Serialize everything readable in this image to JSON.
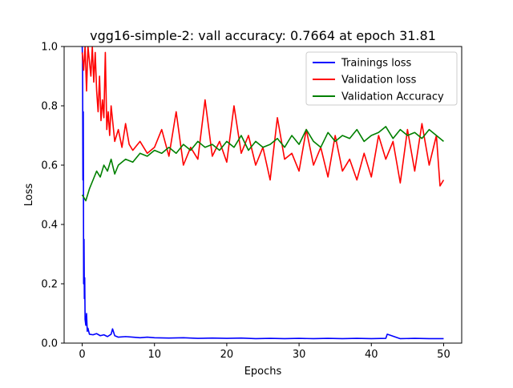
{
  "chart_data": {
    "type": "line",
    "title": "vgg16-simple-2: vall accuracy: 0.7664 at epoch 31.81",
    "xlabel": "Epochs",
    "ylabel": "Loss",
    "xlim": [
      -2.5,
      52.5
    ],
    "ylim": [
      0.0,
      1.0
    ],
    "xticks": [
      0,
      10,
      20,
      30,
      40,
      50
    ],
    "xtick_labels": [
      "0",
      "10",
      "20",
      "30",
      "40",
      "50"
    ],
    "yticks": [
      0.0,
      0.2,
      0.4,
      0.6,
      0.8,
      1.0
    ],
    "ytick_labels": [
      "0.0",
      "0.2",
      "0.4",
      "0.6",
      "0.8",
      "1.0"
    ],
    "grid": false,
    "legend_position": "upper right",
    "series": [
      {
        "name": "Trainings loss",
        "color": "#0000ff",
        "x": [
          0,
          0.05,
          0.1,
          0.15,
          0.2,
          0.25,
          0.3,
          0.35,
          0.4,
          0.5,
          0.6,
          0.7,
          0.8,
          1.0,
          1.5,
          2.0,
          2.5,
          3.0,
          3.5,
          4.0,
          4.2,
          4.5,
          5,
          6,
          7,
          8,
          9,
          10,
          12,
          14,
          16,
          18,
          20,
          22,
          24,
          26,
          28,
          30,
          32,
          34,
          36,
          38,
          40,
          42,
          42.2,
          44,
          46,
          48,
          50
        ],
        "y": [
          1.0,
          0.95,
          0.55,
          0.78,
          0.2,
          0.35,
          0.15,
          0.22,
          0.08,
          0.06,
          0.1,
          0.04,
          0.05,
          0.03,
          0.028,
          0.032,
          0.025,
          0.028,
          0.022,
          0.03,
          0.048,
          0.025,
          0.02,
          0.022,
          0.02,
          0.018,
          0.02,
          0.018,
          0.017,
          0.018,
          0.016,
          0.017,
          0.016,
          0.017,
          0.015,
          0.016,
          0.015,
          0.016,
          0.015,
          0.016,
          0.015,
          0.016,
          0.015,
          0.016,
          0.03,
          0.015,
          0.016,
          0.015,
          0.015
        ]
      },
      {
        "name": "Validation loss",
        "color": "#ff0000",
        "x": [
          0,
          0.2,
          0.4,
          0.6,
          0.8,
          1.0,
          1.2,
          1.4,
          1.6,
          1.8,
          2.0,
          2.2,
          2.4,
          2.6,
          2.8,
          3.0,
          3.2,
          3.4,
          3.6,
          3.8,
          4.0,
          4.5,
          5.0,
          5.5,
          6.0,
          6.5,
          7,
          8,
          9,
          10,
          11,
          12,
          13,
          14,
          15,
          16,
          17,
          18,
          19,
          20,
          21,
          22,
          23,
          24,
          25,
          26,
          27,
          28,
          29,
          30,
          31,
          32,
          33,
          34,
          35,
          36,
          37,
          38,
          39,
          40,
          41,
          42,
          43,
          44,
          45,
          46,
          47,
          48,
          49,
          49.5,
          50
        ],
        "y": [
          0.98,
          0.92,
          1.0,
          0.85,
          1.0,
          0.95,
          0.9,
          1.0,
          0.88,
          0.98,
          0.85,
          0.78,
          0.9,
          0.75,
          0.82,
          0.76,
          0.98,
          0.72,
          0.78,
          0.7,
          0.8,
          0.68,
          0.72,
          0.66,
          0.74,
          0.67,
          0.65,
          0.68,
          0.64,
          0.66,
          0.72,
          0.63,
          0.78,
          0.6,
          0.66,
          0.62,
          0.82,
          0.63,
          0.68,
          0.61,
          0.8,
          0.64,
          0.7,
          0.6,
          0.66,
          0.55,
          0.76,
          0.62,
          0.64,
          0.58,
          0.72,
          0.6,
          0.66,
          0.56,
          0.7,
          0.58,
          0.62,
          0.55,
          0.64,
          0.56,
          0.7,
          0.62,
          0.68,
          0.54,
          0.72,
          0.58,
          0.74,
          0.6,
          0.7,
          0.53,
          0.55
        ]
      },
      {
        "name": "Validation Accuracy",
        "color": "#008000",
        "x": [
          0,
          0.5,
          1.0,
          1.5,
          2.0,
          2.5,
          3.0,
          3.5,
          4.0,
          4.5,
          5,
          6,
          7,
          8,
          9,
          10,
          11,
          12,
          13,
          14,
          15,
          16,
          17,
          18,
          19,
          20,
          21,
          22,
          23,
          24,
          25,
          26,
          27,
          28,
          29,
          30,
          31,
          32,
          33,
          34,
          35,
          36,
          37,
          38,
          39,
          40,
          41,
          42,
          43,
          44,
          45,
          46,
          47,
          48,
          49,
          50
        ],
        "y": [
          0.5,
          0.48,
          0.52,
          0.55,
          0.58,
          0.56,
          0.6,
          0.58,
          0.62,
          0.57,
          0.6,
          0.62,
          0.61,
          0.64,
          0.63,
          0.65,
          0.64,
          0.66,
          0.64,
          0.67,
          0.65,
          0.68,
          0.66,
          0.67,
          0.65,
          0.68,
          0.66,
          0.7,
          0.65,
          0.68,
          0.66,
          0.67,
          0.69,
          0.66,
          0.7,
          0.67,
          0.72,
          0.68,
          0.66,
          0.71,
          0.68,
          0.7,
          0.69,
          0.72,
          0.68,
          0.7,
          0.71,
          0.73,
          0.69,
          0.72,
          0.7,
          0.71,
          0.69,
          0.72,
          0.7,
          0.68
        ]
      }
    ]
  }
}
